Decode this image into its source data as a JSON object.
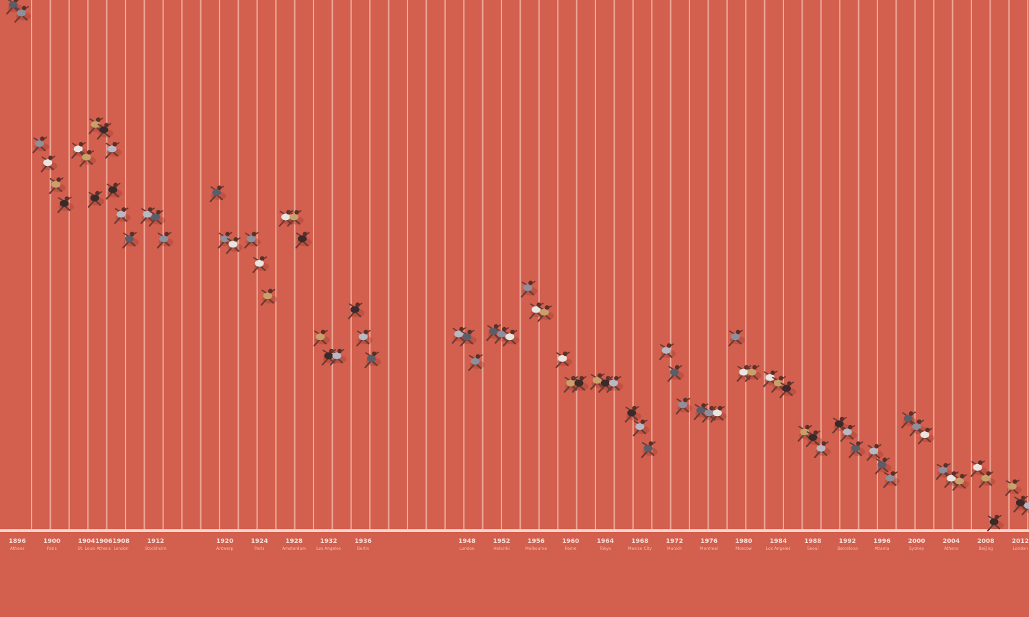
{
  "palette": {
    "track": "#d35f4e",
    "lane": "#f1b6a9",
    "finish": "#f6d3ca",
    "kit": [
      "#5a5e6b",
      "#8d8f9c",
      "#e8e4e0",
      "#c9a06a",
      "#3a2a2a",
      "#b8b8c4"
    ]
  },
  "chart_data": {
    "type": "scatter",
    "title": "",
    "xlabel": "",
    "ylabel": "",
    "games": [
      {
        "year": "1896",
        "city": "Athens",
        "values": [
          0.2,
          0.5
        ]
      },
      {
        "year": "1900",
        "city": "Paris",
        "values": [
          5.3,
          6.0,
          6.8,
          7.5
        ]
      },
      {
        "year": "1904",
        "city": "St. Louis",
        "values": [
          5.5,
          5.8,
          7.3
        ]
      },
      {
        "year": "1906",
        "city": "Athens",
        "values": [
          4.6,
          4.8,
          5.5
        ]
      },
      {
        "year": "1908",
        "city": "London",
        "values": [
          7.0,
          7.9,
          8.8
        ]
      },
      {
        "year": "1912",
        "city": "Stockholm",
        "values": [
          7.9,
          8.0,
          8.8
        ]
      },
      {
        "year": "1920",
        "city": "Antwerp",
        "values": [
          7.1,
          8.8,
          9.0
        ]
      },
      {
        "year": "1924",
        "city": "Paris",
        "values": [
          8.8,
          9.7,
          10.9
        ]
      },
      {
        "year": "1928",
        "city": "Amsterdam",
        "values": [
          8.0,
          8.0,
          8.8
        ]
      },
      {
        "year": "1932",
        "city": "Los Angeles",
        "values": [
          12.4,
          13.1,
          13.1
        ]
      },
      {
        "year": "1936",
        "city": "Berlin",
        "values": [
          11.4,
          12.4,
          13.2
        ]
      },
      {
        "year": "1948",
        "city": "London",
        "values": [
          12.3,
          12.4,
          13.3
        ]
      },
      {
        "year": "1952",
        "city": "Helsinki",
        "values": [
          12.2,
          12.3,
          12.4
        ]
      },
      {
        "year": "1956",
        "city": "Melbourne",
        "values": [
          10.6,
          11.4,
          11.5
        ]
      },
      {
        "year": "1960",
        "city": "Rome",
        "values": [
          13.2,
          14.1,
          14.1
        ]
      },
      {
        "year": "1964",
        "city": "Tokyo",
        "values": [
          14.0,
          14.1,
          14.1
        ]
      },
      {
        "year": "1968",
        "city": "Mexico City",
        "values": [
          15.2,
          15.7,
          16.5
        ]
      },
      {
        "year": "1972",
        "city": "Munich",
        "values": [
          12.9,
          13.7,
          14.9
        ]
      },
      {
        "year": "1976",
        "city": "Montreal",
        "values": [
          15.1,
          15.2,
          15.2
        ]
      },
      {
        "year": "1980",
        "city": "Moscow",
        "values": [
          12.4,
          13.7,
          13.7
        ]
      },
      {
        "year": "1984",
        "city": "Los Angeles",
        "values": [
          13.9,
          14.1,
          14.3
        ]
      },
      {
        "year": "1988",
        "city": "Seoul",
        "values": [
          15.9,
          16.1,
          16.5
        ]
      },
      {
        "year": "1992",
        "city": "Barcelona",
        "values": [
          15.6,
          15.9,
          16.5
        ]
      },
      {
        "year": "1996",
        "city": "Atlanta",
        "values": [
          16.6,
          17.1,
          17.6
        ]
      },
      {
        "year": "2000",
        "city": "Sydney",
        "values": [
          15.4,
          15.7,
          16.0
        ]
      },
      {
        "year": "2004",
        "city": "Athens",
        "values": [
          17.3,
          17.6,
          17.7
        ]
      },
      {
        "year": "2008",
        "city": "Beijing",
        "values": [
          17.2,
          17.6,
          19.2
        ]
      },
      {
        "year": "2012",
        "city": "London",
        "values": [
          17.9,
          18.5,
          18.6
        ]
      }
    ],
    "x_range": [
      1894,
      2013
    ],
    "y_range": [
      0,
      19.5
    ],
    "grid": true,
    "legend": "none"
  }
}
